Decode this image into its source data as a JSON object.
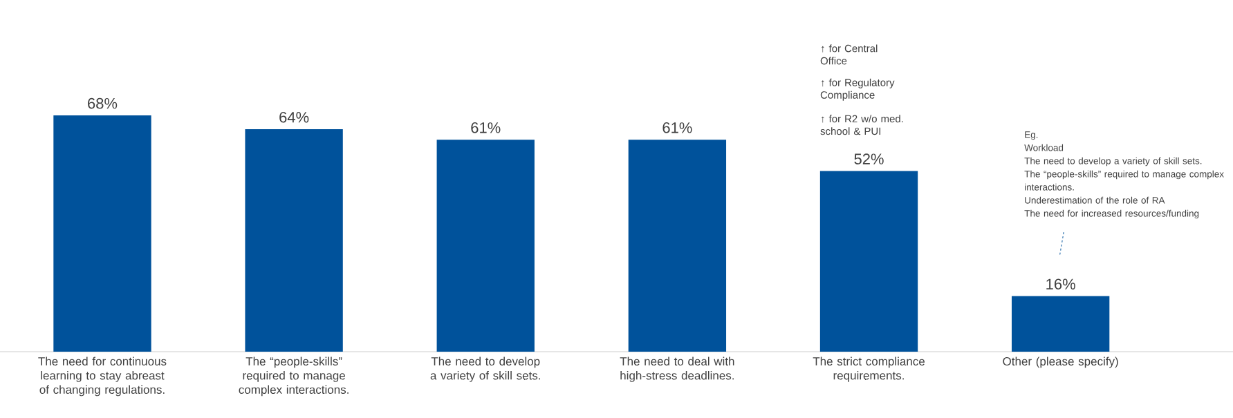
{
  "chart_data": {
    "type": "bar",
    "categories": [
      "The need for continuous learning to stay abreast of changing regulations.",
      "The “people-skills” required to manage complex interactions.",
      "The need to develop a variety of skill sets.",
      "The need to deal with high-stress deadlines.",
      "The strict compliance requirements.",
      "Other (please specify)"
    ],
    "values": [
      68,
      64,
      61,
      61,
      52,
      16
    ],
    "value_labels": [
      "68%",
      "64%",
      "61%",
      "61%",
      "52%",
      "16%"
    ],
    "color": "#00529b",
    "annotations": [
      "↑ for Central Office",
      "↑ for Regulatory Compliance",
      "↑ for R2 w/o med. school & PUI",
      "Eg.",
      "Workload",
      "The need to develop a variety of skill sets.",
      "The “people-skills” required to manage complex interactions.",
      "Underestimation of the role of RA",
      "The need for increased resources/funding"
    ]
  }
}
